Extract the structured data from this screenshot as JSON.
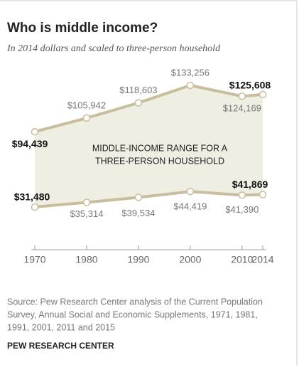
{
  "chart_data": {
    "type": "range-line",
    "title": "Who is middle income?",
    "subtitle": "In 2014 dollars and scaled to three-person household",
    "x": [
      1970,
      1980,
      1990,
      2000,
      2010,
      2014
    ],
    "xlim": [
      1970,
      2014
    ],
    "xticks": [
      1970,
      1980,
      1990,
      2000,
      2010,
      2014
    ],
    "band_color": "#efeee3",
    "series": [
      {
        "color": "#c8bd9c",
        "values": [
          94439,
          105942,
          118603,
          133256,
          124169,
          125608
        ],
        "value_labels": [
          "$94,439",
          "$105,942",
          "$118,603",
          "$133,256",
          "$124,169",
          "$125,608"
        ]
      },
      {
        "color": "#c8bd9c",
        "values": [
          31480,
          35314,
          39534,
          44419,
          41390,
          41869
        ],
        "value_labels": [
          "$31,480",
          "$35,314",
          "$39,534",
          "$44,419",
          "$41,390",
          "$41,869"
        ]
      }
    ],
    "annotation": [
      "MIDDLE-INCOME RANGE FOR A",
      "THREE-PERSON HOUSEHOLD"
    ],
    "source": [
      "Source: Pew Research Center analysis of the Current Population",
      "Survey, Annual Social and Economic Supplements, 1971, 1981,",
      "1991, 2001, 2011 and 2015"
    ],
    "credit": "PEW RESEARCH CENTER"
  }
}
